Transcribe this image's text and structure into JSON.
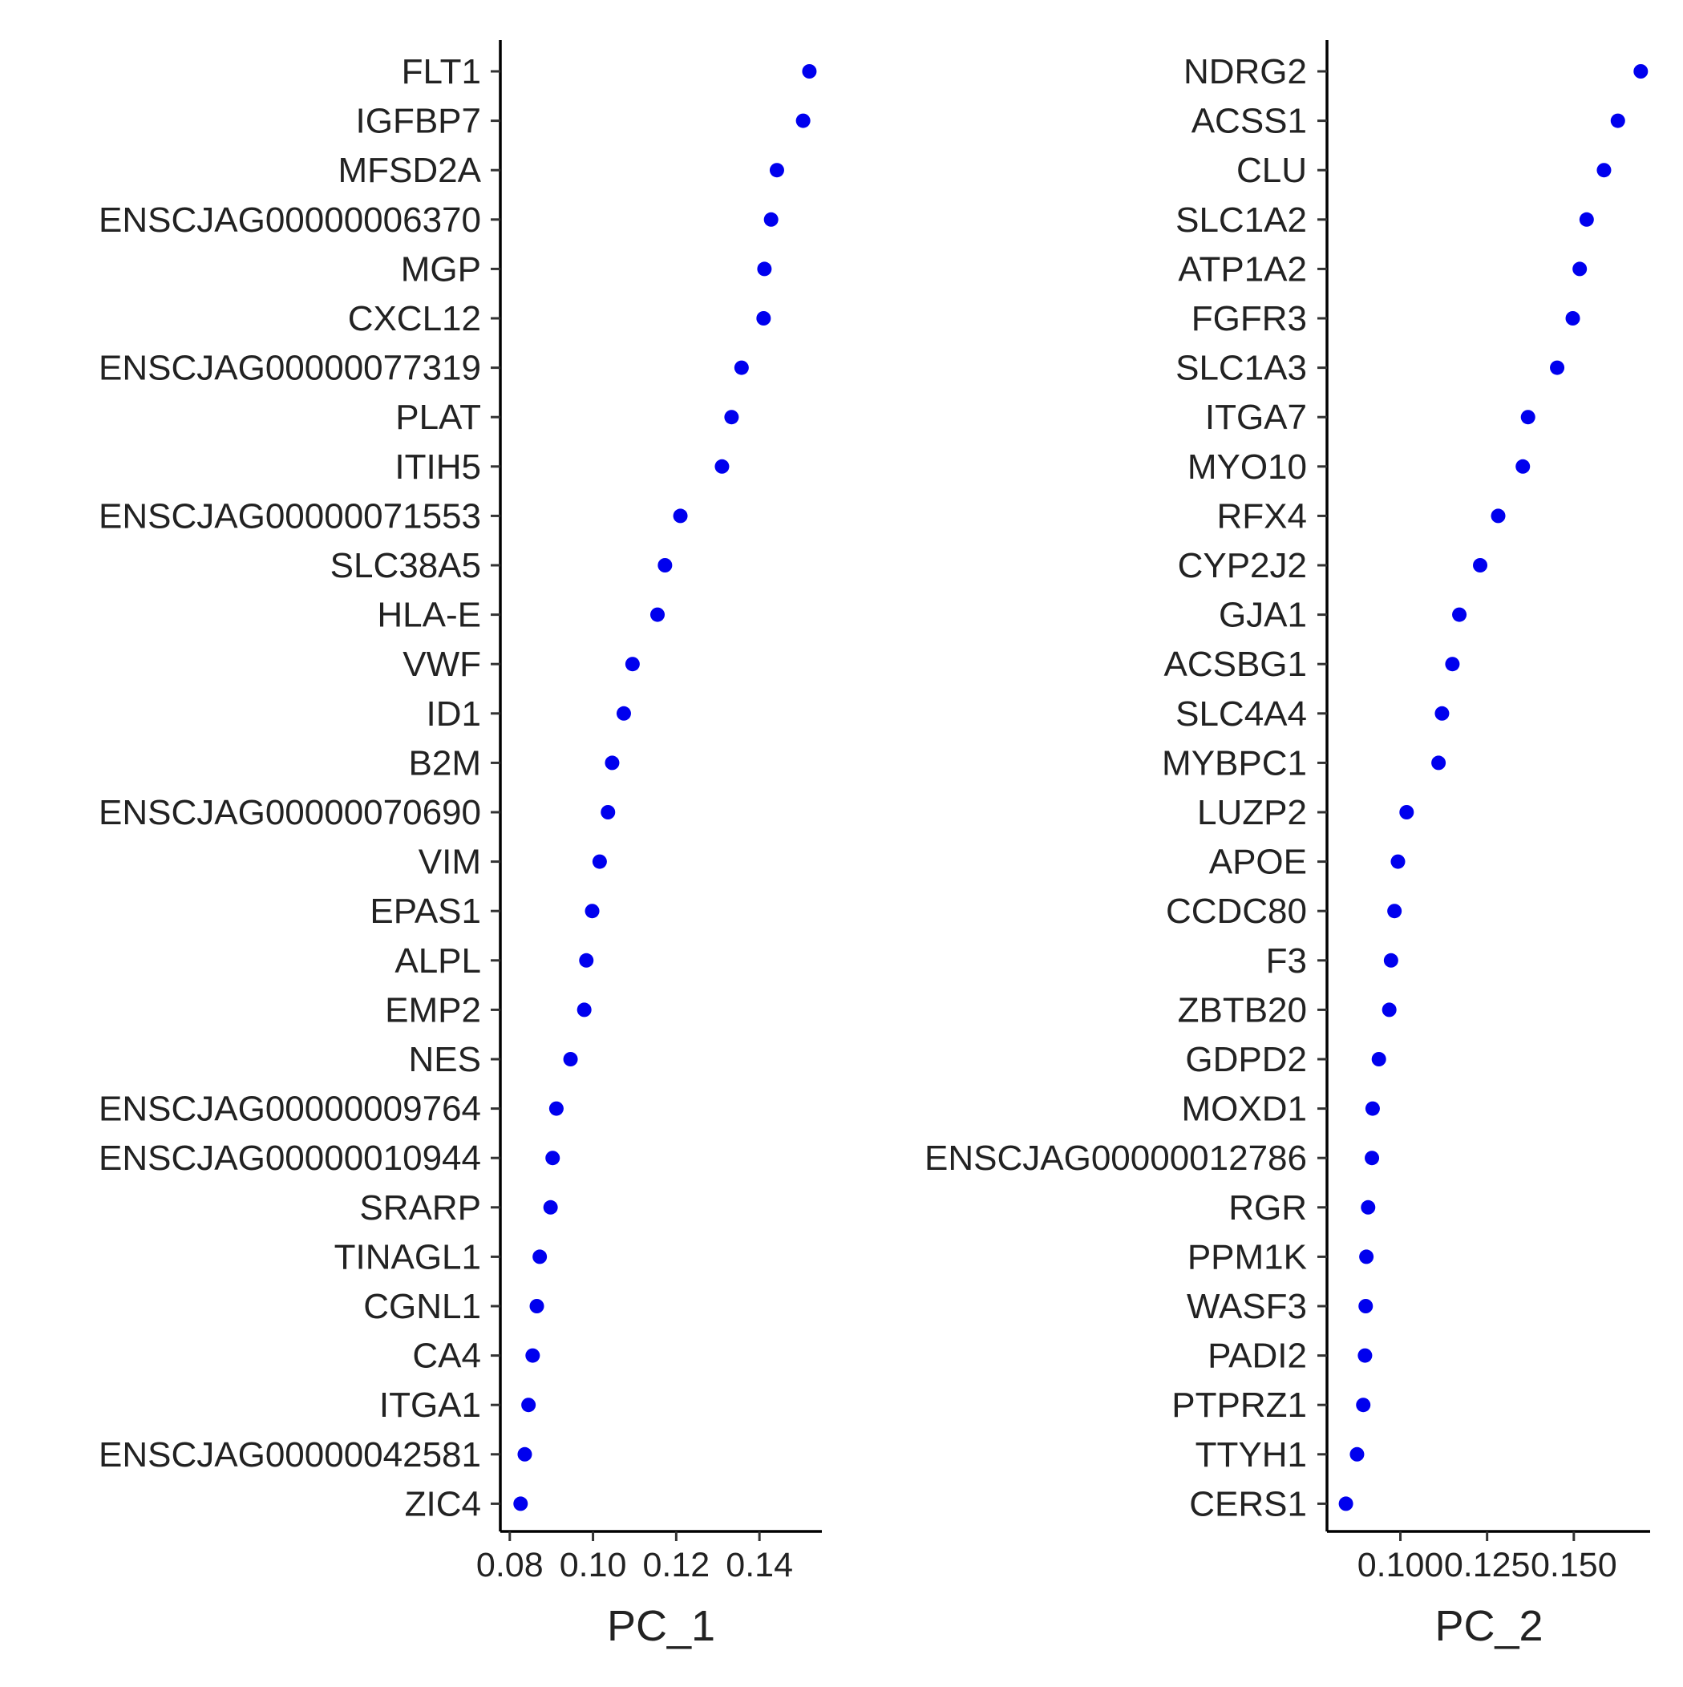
{
  "chart_data": [
    {
      "type": "scatter",
      "xlabel": "PC_1",
      "xticks": [
        "0.08",
        "0.10",
        "0.12",
        "0.14"
      ],
      "xtick_values": [
        0.08,
        0.1,
        0.12,
        0.14
      ],
      "xlim": [
        0.0785,
        0.155
      ],
      "point_color": "#0000ee",
      "genes": [
        "FLT1",
        "IGFBP7",
        "MFSD2A",
        "ENSCJAG00000006370",
        "MGP",
        "CXCL12",
        "ENSCJAG00000077319",
        "PLAT",
        "ITIH5",
        "ENSCJAG00000071553",
        "SLC38A5",
        "HLA-E",
        "VWF",
        "ID1",
        "B2M",
        "ENSCJAG00000070690",
        "VIM",
        "EPAS1",
        "ALPL",
        "EMP2",
        "NES",
        "ENSCJAG00000009764",
        "ENSCJAG00000010944",
        "SRARP",
        "TINAGL1",
        "CGNL1",
        "CA4",
        "ITGA1",
        "ENSCJAG00000042581",
        "ZIC4"
      ],
      "values": [
        0.152,
        0.1505,
        0.1442,
        0.1428,
        0.1412,
        0.141,
        0.1357,
        0.1333,
        0.131,
        0.121,
        0.1173,
        0.1155,
        0.1095,
        0.1074,
        0.1046,
        0.1036,
        0.1016,
        0.0998,
        0.0984,
        0.0979,
        0.0946,
        0.0912,
        0.0903,
        0.0898,
        0.0872,
        0.0865,
        0.0855,
        0.0845,
        0.0836,
        0.0826
      ]
    },
    {
      "type": "scatter",
      "xlabel": "PC_2",
      "xticks": [
        "0.100",
        "0.125",
        "0.150"
      ],
      "xtick_values": [
        0.1,
        0.125,
        0.15
      ],
      "xlim": [
        0.08,
        0.172
      ],
      "point_color": "#0000ee",
      "genes": [
        "NDRG2",
        "ACSS1",
        "CLU",
        "SLC1A2",
        "ATP1A2",
        "FGFR3",
        "SLC1A3",
        "ITGA7",
        "MYO10",
        "RFX4",
        "CYP2J2",
        "GJA1",
        "ACSBG1",
        "SLC4A4",
        "MYBPC1",
        "LUZP2",
        "APOE",
        "CCDC80",
        "F3",
        "ZBTB20",
        "GDPD2",
        "MOXD1",
        "ENSCJAG00000012786",
        "RGR",
        "PPM1K",
        "WASF3",
        "PADI2",
        "PTPRZ1",
        "TTYH1",
        "CERS1"
      ],
      "values": [
        0.1693,
        0.1627,
        0.1587,
        0.1537,
        0.1517,
        0.1497,
        0.1452,
        0.1368,
        0.1353,
        0.1282,
        0.123,
        0.117,
        0.115,
        0.112,
        0.111,
        0.1018,
        0.0993,
        0.0983,
        0.0973,
        0.0968,
        0.0938,
        0.092,
        0.0918,
        0.0907,
        0.0902,
        0.09,
        0.0898,
        0.0893,
        0.0875,
        0.0843
      ]
    }
  ]
}
